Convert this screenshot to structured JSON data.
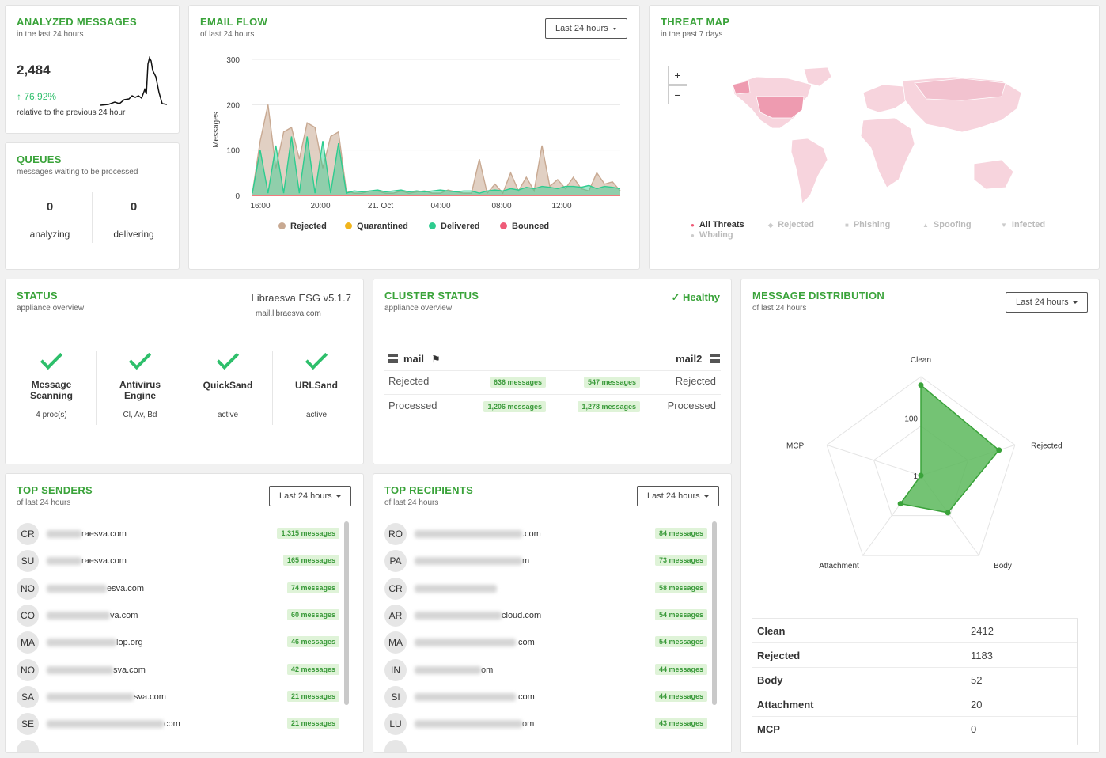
{
  "analyzed": {
    "title": "ANALYZED MESSAGES",
    "subtitle": "in the last 24 hours",
    "count": "2,484",
    "change": "76.92%",
    "note": "relative to the previous 24 hour"
  },
  "queues": {
    "title": "QUEUES",
    "subtitle": "messages waiting to be processed",
    "analyzing_value": "0",
    "analyzing_label": "analyzing",
    "delivering_value": "0",
    "delivering_label": "delivering"
  },
  "email_flow": {
    "title": "EMAIL FLOW",
    "subtitle": "of last 24 hours",
    "period": "Last 24 hours",
    "ylabel": "Messages",
    "yticks": [
      "300",
      "200",
      "100",
      "0"
    ],
    "xticks": [
      "16:00",
      "20:00",
      "21. Oct",
      "04:00",
      "08:00",
      "12:00"
    ],
    "legend": [
      "Rejected",
      "Quarantined",
      "Delivered",
      "Bounced"
    ]
  },
  "chart_data": {
    "type": "area",
    "title": "EMAIL FLOW",
    "ylabel": "Messages",
    "ylim": [
      0,
      300
    ],
    "x_ticks": [
      "16:00",
      "20:00",
      "21. Oct",
      "04:00",
      "08:00",
      "12:00"
    ],
    "series": [
      {
        "name": "Rejected",
        "color": "#c8a992",
        "values": [
          5,
          120,
          200,
          60,
          140,
          150,
          80,
          160,
          150,
          60,
          130,
          140,
          10,
          5,
          5,
          10,
          10,
          5,
          5,
          10,
          5,
          8,
          10,
          5,
          5,
          12,
          8,
          5,
          5,
          80,
          5,
          25,
          5,
          50,
          10,
          40,
          10,
          110,
          20,
          35,
          15,
          40,
          15,
          10,
          50,
          25,
          30,
          10
        ]
      },
      {
        "name": "Quarantined",
        "color": "#f1b51c",
        "values": [
          0,
          0,
          0,
          0,
          0,
          0,
          0,
          0,
          0,
          0,
          0,
          0,
          0,
          0,
          0,
          0,
          0,
          0,
          0,
          0,
          0,
          0,
          0,
          0,
          0,
          0,
          0,
          0,
          0,
          0,
          0,
          0,
          0,
          0,
          0,
          0,
          0,
          0,
          0,
          0,
          0,
          0,
          0,
          0,
          0,
          0,
          0,
          0
        ]
      },
      {
        "name": "Delivered",
        "color": "#2ecc8f",
        "values": [
          5,
          100,
          5,
          110,
          5,
          130,
          5,
          130,
          5,
          120,
          5,
          115,
          5,
          10,
          8,
          10,
          12,
          8,
          10,
          12,
          8,
          10,
          8,
          10,
          12,
          10,
          8,
          10,
          10,
          5,
          10,
          12,
          10,
          15,
          12,
          18,
          15,
          20,
          18,
          15,
          20,
          20,
          18,
          22,
          15,
          20,
          18,
          15
        ]
      },
      {
        "name": "Bounced",
        "color": "#ef5b78",
        "values": [
          0,
          0,
          0,
          0,
          0,
          0,
          0,
          0,
          0,
          0,
          0,
          0,
          0,
          0,
          0,
          0,
          0,
          0,
          0,
          0,
          0,
          0,
          0,
          0,
          0,
          0,
          0,
          0,
          0,
          0,
          0,
          0,
          0,
          0,
          0,
          0,
          0,
          0,
          0,
          0,
          0,
          0,
          0,
          0,
          0,
          0,
          0,
          0
        ]
      }
    ]
  },
  "threat_map": {
    "title": "THREAT MAP",
    "subtitle": "in the past 7 days",
    "zoom_in": "+",
    "zoom_out": "−",
    "legend": [
      "All Threats",
      "Rejected",
      "Phishing",
      "Spoofing",
      "Infected",
      "Whaling"
    ]
  },
  "status": {
    "title": "STATUS",
    "subtitle": "appliance overview",
    "version": "Libraesva ESG v5.1.7",
    "host": "mail.libraesva.com",
    "items": [
      {
        "name_1": "Message",
        "name_2": "Scanning",
        "value": "4 proc(s)"
      },
      {
        "name_1": "Antivirus",
        "name_2": "Engine",
        "value": "Cl, Av, Bd"
      },
      {
        "name_1": "QuickSand",
        "name_2": "",
        "value": "active"
      },
      {
        "name_1": "URLSand",
        "name_2": "",
        "value": "active"
      }
    ]
  },
  "cluster": {
    "title": "CLUSTER STATUS",
    "subtitle": "appliance overview",
    "health": "Healthy",
    "node1": "mail",
    "node2": "mail2",
    "rows": [
      {
        "label": "Rejected",
        "left": "636 messages",
        "right": "547 messages"
      },
      {
        "label": "Processed",
        "left": "1,206 messages",
        "right": "1,278 messages"
      }
    ]
  },
  "distribution": {
    "title": "MESSAGE DISTRIBUTION",
    "subtitle": "of last 24 hours",
    "period": "Last 24 hours",
    "axes": [
      "Clean",
      "Rejected",
      "Body",
      "Attachment",
      "MCP"
    ],
    "scale_labels": [
      "100",
      "1"
    ],
    "table": [
      {
        "name": "Clean",
        "value": "2412"
      },
      {
        "name": "Rejected",
        "value": "1183"
      },
      {
        "name": "Body",
        "value": "52"
      },
      {
        "name": "Attachment",
        "value": "20"
      },
      {
        "name": "MCP",
        "value": "0"
      }
    ]
  },
  "senders": {
    "title": "TOP SENDERS",
    "subtitle": "of last 24 hours",
    "period": "Last 24 hours",
    "rows": [
      {
        "initials": "CR",
        "visible": "raesva.com",
        "count": "1,315 messages"
      },
      {
        "initials": "SU",
        "visible": "raesva.com",
        "count": "165 messages"
      },
      {
        "initials": "NO",
        "visible": "esva.com",
        "count": "74 messages"
      },
      {
        "initials": "CO",
        "visible": "va.com",
        "count": "60 messages"
      },
      {
        "initials": "MA",
        "visible": "lop.org",
        "count": "46 messages"
      },
      {
        "initials": "NO",
        "visible": "sva.com",
        "count": "42 messages"
      },
      {
        "initials": "SA",
        "visible": "sva.com",
        "count": "21 messages"
      },
      {
        "initials": "SE",
        "visible": "com",
        "count": "21 messages"
      }
    ]
  },
  "recipients": {
    "title": "TOP RECIPIENTS",
    "subtitle": "of last 24 hours",
    "period": "Last 24 hours",
    "rows": [
      {
        "initials": "RO",
        "visible": ".com",
        "count": "84 messages"
      },
      {
        "initials": "PA",
        "visible": "m",
        "count": "73 messages"
      },
      {
        "initials": "CR",
        "visible": "",
        "count": "58 messages"
      },
      {
        "initials": "AR",
        "visible": "cloud.com",
        "count": "54 messages"
      },
      {
        "initials": "MA",
        "visible": ".com",
        "count": "54 messages"
      },
      {
        "initials": "IN",
        "visible": "om",
        "count": "44 messages"
      },
      {
        "initials": "SI",
        "visible": ".com",
        "count": "44 messages"
      },
      {
        "initials": "LU",
        "visible": "om",
        "count": "43 messages"
      }
    ]
  }
}
